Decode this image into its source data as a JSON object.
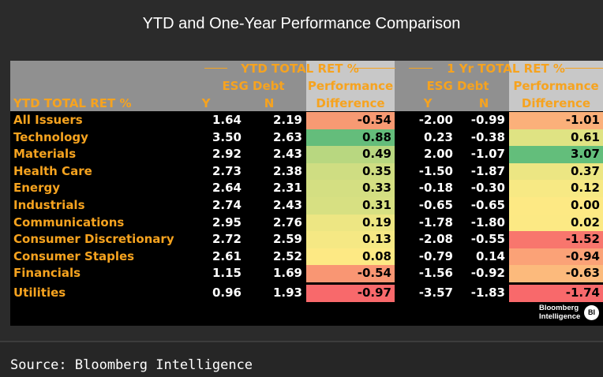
{
  "title": "YTD and One-Year Performance Comparison",
  "header": {
    "row_label": "YTD TOTAL RET %",
    "group1": "YTD TOTAL RET %",
    "group2": "1 Yr TOTAL RET %",
    "esg_debt": "ESG Debt",
    "y": "Y",
    "n": "N",
    "perf1": "Performance",
    "perf2": "Difference"
  },
  "chart_data": {
    "type": "table",
    "columns": [
      "YTD ESG Debt Y",
      "YTD ESG Debt N",
      "YTD Performance Difference",
      "1 Yr ESG Debt Y",
      "1 Yr ESG Debt N",
      "1 Yr Performance Difference"
    ],
    "rows": [
      {
        "label": "All Issuers",
        "ytd_y": "1.64",
        "ytd_n": "2.19",
        "ytd_diff": "-0.54",
        "yr_y": "-2.00",
        "yr_n": "-0.99",
        "yr_diff": "-1.01",
        "ytd_color": "#f79a73",
        "yr_color": "#fbb07a"
      },
      {
        "label": "Technology",
        "ytd_y": "3.50",
        "ytd_n": "2.63",
        "ytd_diff": "0.88",
        "yr_y": "0.23",
        "yr_n": "-0.38",
        "yr_diff": "0.61",
        "ytd_color": "#64bd7b",
        "yr_color": "#dfe383"
      },
      {
        "label": "Materials",
        "ytd_y": "2.92",
        "ytd_n": "2.43",
        "ytd_diff": "0.49",
        "yr_y": "2.00",
        "yr_n": "-1.07",
        "yr_diff": "3.07",
        "ytd_color": "#b8d780",
        "yr_color": "#63be7b"
      },
      {
        "label": "Health Care",
        "ytd_y": "2.73",
        "ytd_n": "2.38",
        "ytd_diff": "0.35",
        "yr_y": "-1.50",
        "yr_n": "-1.87",
        "yr_diff": "0.37",
        "ytd_color": "#cfdd82",
        "yr_color": "#ece683"
      },
      {
        "label": "Energy",
        "ytd_y": "2.64",
        "ytd_n": "2.31",
        "ytd_diff": "0.33",
        "yr_y": "-0.18",
        "yr_n": "-0.30",
        "yr_diff": "0.12",
        "ytd_color": "#d4df82",
        "yr_color": "#f7e984"
      },
      {
        "label": "Industrials",
        "ytd_y": "2.74",
        "ytd_n": "2.43",
        "ytd_diff": "0.31",
        "yr_y": "-0.65",
        "yr_n": "-0.65",
        "yr_diff": "0.00",
        "ytd_color": "#d7e082",
        "yr_color": "#fde984"
      },
      {
        "label": "Communications",
        "ytd_y": "2.95",
        "ytd_n": "2.76",
        "ytd_diff": "0.19",
        "yr_y": "-1.78",
        "yr_n": "-1.80",
        "yr_diff": "0.02",
        "ytd_color": "#ede683",
        "yr_color": "#fce984"
      },
      {
        "label": "Consumer Discretionary",
        "ytd_y": "2.72",
        "ytd_n": "2.59",
        "ytd_diff": "0.13",
        "yr_y": "-2.08",
        "yr_n": "-0.55",
        "yr_diff": "-1.52",
        "ytd_color": "#f5e884",
        "yr_color": "#f8766d"
      },
      {
        "label": "Consumer Staples",
        "ytd_y": "2.61",
        "ytd_n": "2.52",
        "ytd_diff": "0.08",
        "yr_y": "-0.79",
        "yr_n": "0.14",
        "yr_diff": "-0.94",
        "ytd_color": "#fde984",
        "yr_color": "#fba277"
      },
      {
        "label": "Financials",
        "ytd_y": "1.15",
        "ytd_n": "1.69",
        "ytd_diff": "-0.54",
        "yr_y": "-1.56",
        "yr_n": "-0.92",
        "yr_diff": "-0.63",
        "ytd_color": "#f99673",
        "yr_color": "#fcba7c"
      },
      {
        "label": "Utilities",
        "ytd_y": "0.96",
        "ytd_n": "1.93",
        "ytd_diff": "-0.97",
        "yr_y": "-3.57",
        "yr_n": "-1.83",
        "yr_diff": "-1.74",
        "ytd_color": "#f8696b",
        "yr_color": "#f8696b"
      }
    ]
  },
  "logo": {
    "line1": "Bloomberg",
    "line2": "Intelligence",
    "badge": "BI"
  },
  "source": "Source: Bloomberg Intelligence"
}
